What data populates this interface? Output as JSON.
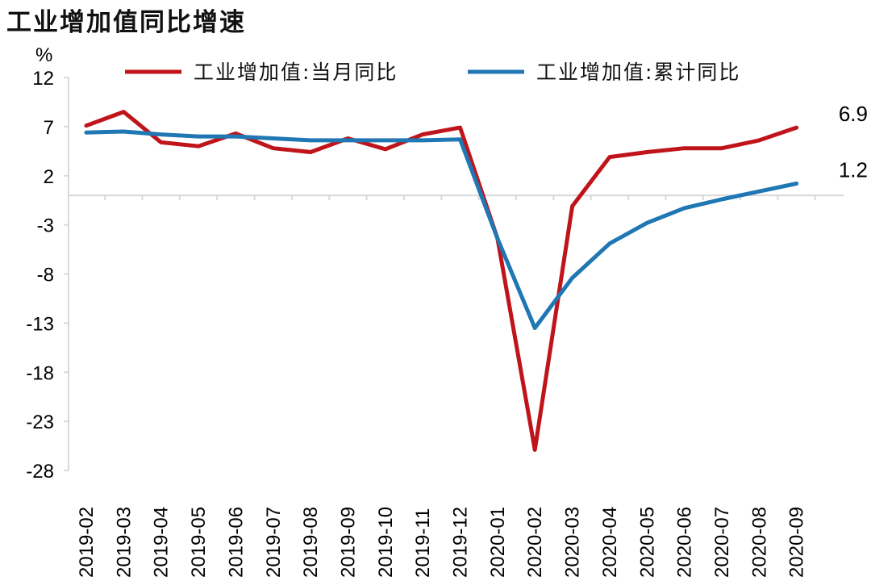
{
  "title": "工业增加值同比增速",
  "chart_data": {
    "type": "line",
    "title": "工业增加值同比增速",
    "ylabel": "%",
    "xlabel": "",
    "ylim": [
      -28,
      12
    ],
    "yticks": [
      12,
      7,
      2,
      -3,
      -8,
      -13,
      -18,
      -23,
      -28
    ],
    "grid": false,
    "legend_position": "top",
    "categories": [
      "2019-02",
      "2019-03",
      "2019-04",
      "2019-05",
      "2019-06",
      "2019-07",
      "2019-08",
      "2019-09",
      "2019-10",
      "2019-11",
      "2019-12",
      "2020-01",
      "2020-02",
      "2020-03",
      "2020-04",
      "2020-05",
      "2020-06",
      "2020-07",
      "2020-08",
      "2020-09"
    ],
    "series": [
      {
        "name": "工业增加值:当月同比",
        "color": "#c0141b",
        "values": [
          7.1,
          8.5,
          5.4,
          5.0,
          6.3,
          4.8,
          4.4,
          5.8,
          4.7,
          6.2,
          6.9,
          -4.4,
          -25.9,
          -1.1,
          3.9,
          4.4,
          4.8,
          4.8,
          5.6,
          6.9
        ],
        "end_label": "6.9"
      },
      {
        "name": "工业增加值:累计同比",
        "color": "#1f77b4",
        "values": [
          6.4,
          6.5,
          6.2,
          6.0,
          6.0,
          5.8,
          5.6,
          5.6,
          5.6,
          5.6,
          5.7,
          -4.4,
          -13.5,
          -8.4,
          -4.9,
          -2.8,
          -1.3,
          -0.4,
          0.4,
          1.2
        ],
        "end_label": "1.2"
      }
    ]
  }
}
